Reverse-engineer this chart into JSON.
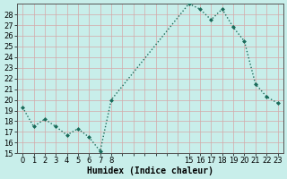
{
  "x": [
    0,
    1,
    2,
    3,
    4,
    5,
    6,
    7,
    8,
    15,
    16,
    17,
    18,
    19,
    20,
    21,
    22,
    23
  ],
  "y": [
    19.3,
    17.5,
    18.2,
    17.5,
    16.7,
    17.3,
    16.5,
    15.2,
    20.0,
    29.0,
    28.5,
    27.5,
    28.5,
    26.8,
    25.5,
    21.5,
    20.3,
    19.7
  ],
  "line_color": "#1a6b5a",
  "marker_color": "#1a6b5a",
  "bg_color": "#c8eeea",
  "grid_major_color": "#d4a8a8",
  "grid_minor_color": "#d4a8a8",
  "xlabel": "Humidex (Indice chaleur)",
  "ylim": [
    15,
    29
  ],
  "xlim": [
    -0.5,
    23.5
  ],
  "yticks": [
    15,
    16,
    17,
    18,
    19,
    20,
    21,
    22,
    23,
    24,
    25,
    26,
    27,
    28
  ],
  "xticks": [
    0,
    1,
    2,
    3,
    4,
    5,
    6,
    7,
    8,
    15,
    16,
    17,
    18,
    19,
    20,
    21,
    22,
    23
  ],
  "all_xticks": [
    0,
    1,
    2,
    3,
    4,
    5,
    6,
    7,
    8,
    9,
    10,
    11,
    12,
    13,
    14,
    15,
    16,
    17,
    18,
    19,
    20,
    21,
    22,
    23
  ],
  "xlabel_fontsize": 7,
  "tick_fontsize": 6,
  "line_width": 1.0,
  "marker_size": 2.0,
  "figsize": [
    3.2,
    2.0
  ],
  "dpi": 100
}
